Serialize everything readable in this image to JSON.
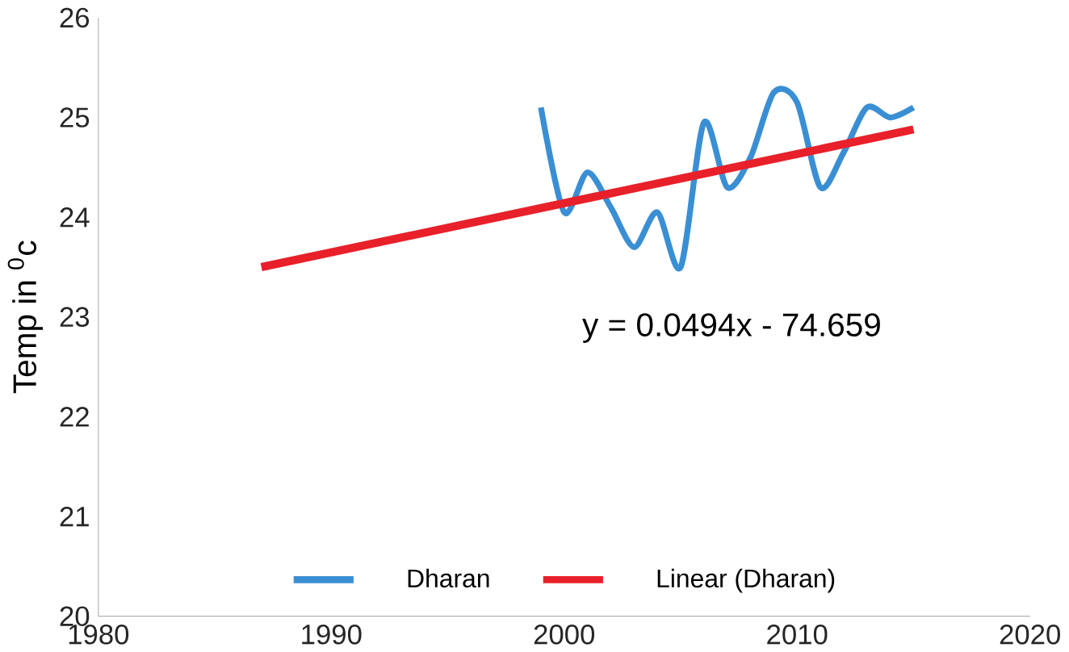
{
  "chart_data": {
    "type": "line",
    "ylabel": "Temp in $^{0}$c",
    "series": [
      {
        "name": "Dharan",
        "color": "#3a8fd4",
        "x": [
          1999,
          2000,
          2001,
          2002,
          2003,
          2004,
          2005,
          2006,
          2007,
          2008,
          2009,
          2010,
          2011,
          2012,
          2013,
          2014,
          2015
        ],
        "values": [
          25.1,
          24.05,
          24.45,
          24.1,
          23.7,
          24.05,
          23.5,
          24.95,
          24.3,
          24.6,
          25.25,
          25.15,
          24.3,
          24.65,
          25.1,
          25.0,
          25.1
        ]
      },
      {
        "name": "Linear (Dharan)",
        "color": "#e8202a",
        "x": [
          1987,
          2015
        ],
        "values": [
          23.5,
          24.88
        ]
      }
    ],
    "xlim": [
      1980,
      2020
    ],
    "xticks": [
      1980,
      1990,
      2000,
      2010,
      2020
    ],
    "ylim": [
      20,
      26
    ],
    "yticks": [
      20,
      21,
      22,
      23,
      24,
      25,
      26
    ],
    "annotations": [
      "y = 0.0494x - 74.659"
    ],
    "legend": "bottom",
    "grid": false,
    "marker": "none",
    "line_style": "solid"
  }
}
